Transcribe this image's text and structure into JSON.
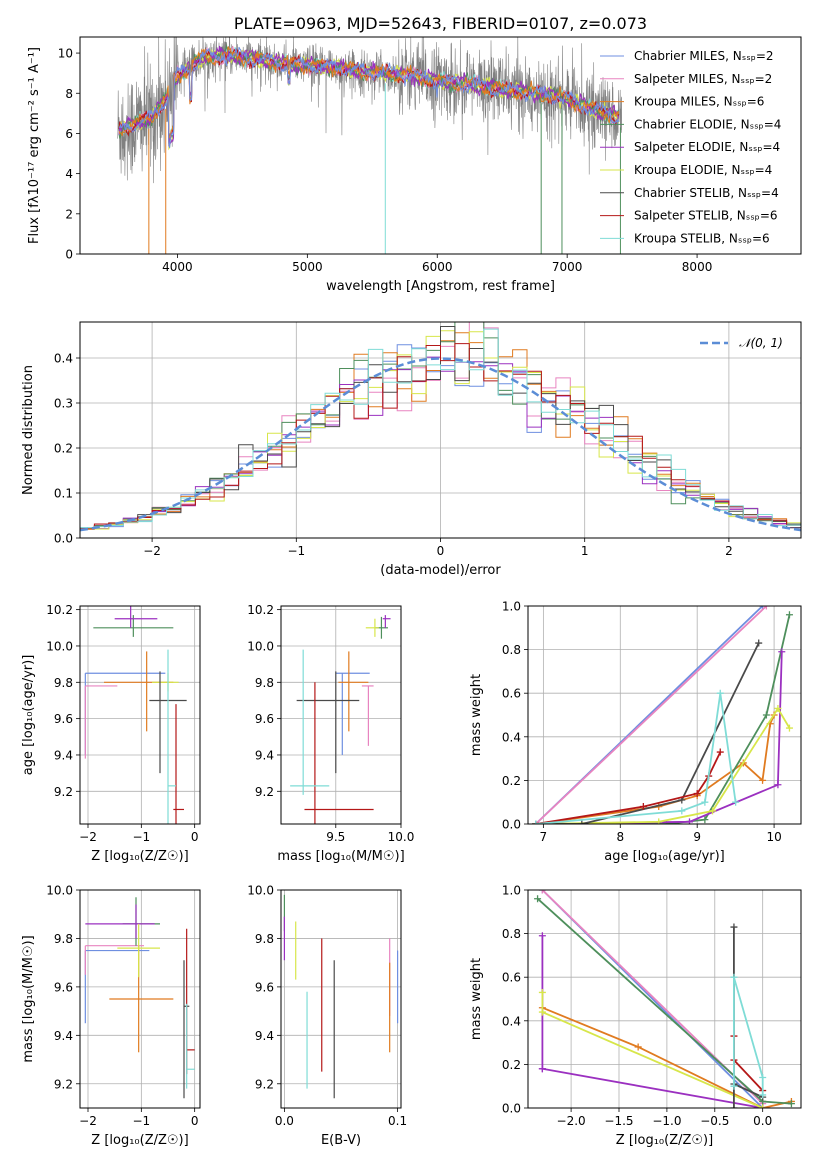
{
  "palette": [
    "#6f8fe0",
    "#e884c0",
    "#e07b20",
    "#4e8f5c",
    "#9b30c0",
    "#d7e64a",
    "#4a4a4a",
    "#b41818",
    "#7fdcd6"
  ],
  "chart_data": [
    {
      "id": "spectrum",
      "type": "line",
      "title": "PLATE=0963, MJD=52643, FIBERID=0107, z=0.073",
      "xlabel": "wavelength [Angstrom, rest frame]",
      "ylabel": "Flux [fλ10⁻¹⁷ erg cm⁻² s⁻¹ A⁻¹]",
      "xlim": [
        3250,
        8800
      ],
      "ylim": [
        0,
        10.8
      ],
      "xticks": [
        4000,
        5000,
        6000,
        7000,
        8000
      ],
      "yticks": [
        0,
        2,
        4,
        6,
        8,
        10
      ],
      "grid": false,
      "legend_position": "right",
      "series": [
        {
          "name": "Chabrier MILES, Nₛₛₚ=2"
        },
        {
          "name": "Salpeter MILES, Nₛₛₚ=2"
        },
        {
          "name": "Kroupa MILES, Nₛₛₚ=6"
        },
        {
          "name": "Chabrier ELODIE, Nₛₛₚ=4"
        },
        {
          "name": "Salpeter ELODIE, Nₛₛₚ=4"
        },
        {
          "name": "Kroupa ELODIE, Nₛₛₚ=4"
        },
        {
          "name": "Chabrier STELIB, Nₛₛₚ=4"
        },
        {
          "name": "Salpeter STELIB, Nₛₛₚ=6"
        },
        {
          "name": "Kroupa STELIB, Nₛₛₚ=6"
        }
      ],
      "continuum": {
        "x": [
          3550,
          3700,
          3800,
          3900,
          4000,
          4100,
          4200,
          4400,
          4600,
          4800,
          5000,
          5200,
          5400,
          5600,
          5800,
          6000,
          6200,
          6400,
          6600,
          6800,
          7000,
          7200,
          7400
        ],
        "y": [
          6.2,
          6.5,
          6.8,
          7.6,
          8.9,
          9.3,
          9.8,
          9.9,
          9.7,
          9.5,
          9.4,
          9.3,
          9.1,
          9.0,
          8.9,
          8.6,
          8.5,
          8.3,
          8.1,
          8.0,
          7.7,
          7.2,
          6.8
        ]
      }
    },
    {
      "id": "residuals",
      "type": "histogram",
      "xlabel": "(data-model)/error",
      "ylabel": "Normed distribution",
      "xlim": [
        -2.5,
        2.5
      ],
      "ylim": [
        0,
        0.48
      ],
      "xticks": [
        -2,
        -1,
        0,
        1,
        2
      ],
      "yticks": [
        0.0,
        0.1,
        0.2,
        0.3,
        0.4
      ],
      "grid": true,
      "legend": [
        "𝒩(0, 1)"
      ],
      "legend_position": "top-right",
      "bin_width": 0.1
    },
    {
      "id": "age-vs-Z",
      "type": "errorbar",
      "xlabel": "Z [log₁₀(Z/Z☉)]",
      "ylabel": "age  [log₁₀(age/yr)]",
      "xlim": [
        -2.15,
        0.1
      ],
      "ylim": [
        9.02,
        10.22
      ],
      "xticks": [
        -2,
        -1,
        0
      ],
      "yticks": [
        9.2,
        9.4,
        9.6,
        9.8,
        10.0,
        10.2
      ],
      "grid": true,
      "points": [
        {
          "x": -2.05,
          "xerr": [
            0,
            1.5
          ],
          "y": 9.85,
          "yerr": [
            0.45,
            0
          ]
        },
        {
          "x": -2.05,
          "xerr": [
            0,
            0.6
          ],
          "y": 9.78,
          "yerr": [
            0.4,
            0
          ]
        },
        {
          "x": -0.9,
          "xerr": [
            0.8,
            0.5
          ],
          "y": 9.8,
          "yerr": [
            0.27,
            0.17
          ]
        },
        {
          "x": -1.15,
          "xerr": [
            0.75,
            0.75
          ],
          "y": 10.1,
          "yerr": [
            0.05,
            0.07
          ]
        },
        {
          "x": -1.2,
          "xerr": [
            0.3,
            0.5
          ],
          "y": 10.15,
          "yerr": [
            0.05,
            0.07
          ]
        },
        {
          "x": -0.5,
          "xerr": [
            0.3,
            0.2
          ],
          "y": 9.8,
          "yerr": [
            0.05,
            0.05
          ]
        },
        {
          "x": -0.65,
          "xerr": [
            0.2,
            0.5
          ],
          "y": 9.7,
          "yerr": [
            0.4,
            0.16
          ]
        },
        {
          "x": -0.35,
          "xerr": [
            0.05,
            0.15
          ],
          "y": 9.1,
          "yerr": [
            0.2,
            0.58
          ]
        },
        {
          "x": -0.5,
          "xerr": [
            0,
            0.15
          ],
          "y": 9.23,
          "yerr": [
            0.22,
            0.75
          ]
        }
      ]
    },
    {
      "id": "age-vs-mass",
      "type": "errorbar",
      "xlabel": "mass [log₁₀(M/M☉)]",
      "xlim": [
        9.08,
        10.0
      ],
      "ylim": [
        9.02,
        10.22
      ],
      "xticks": [
        9.5,
        10.0
      ],
      "yticks": [
        9.2,
        9.4,
        9.6,
        9.8,
        10.0,
        10.2
      ],
      "grid": true,
      "points": [
        {
          "x": 9.55,
          "xerr": [
            0.05,
            0.21
          ],
          "y": 9.85,
          "yerr": [
            0.45,
            0
          ]
        },
        {
          "x": 9.75,
          "xerr": [
            0.05,
            0.04
          ],
          "y": 9.78,
          "yerr": [
            0.33,
            0
          ]
        },
        {
          "x": 9.6,
          "xerr": [
            0.08,
            0.15
          ],
          "y": 9.8,
          "yerr": [
            0.27,
            0.17
          ]
        },
        {
          "x": 9.85,
          "xerr": [
            0.05,
            0.05
          ],
          "y": 10.1,
          "yerr": [
            0.06,
            0.06
          ]
        },
        {
          "x": 9.88,
          "xerr": [
            0.02,
            0.04
          ],
          "y": 10.15,
          "yerr": [
            0.05,
            0.02
          ]
        },
        {
          "x": 9.8,
          "xerr": [
            0.07,
            0.03
          ],
          "y": 10.1,
          "yerr": [
            0.05,
            0.05
          ]
        },
        {
          "x": 9.5,
          "xerr": [
            0.3,
            0.18
          ],
          "y": 9.7,
          "yerr": [
            0.4,
            0.16
          ]
        },
        {
          "x": 9.34,
          "xerr": [
            0.08,
            0.45
          ],
          "y": 9.1,
          "yerr": [
            0.1,
            0.7
          ]
        },
        {
          "x": 9.25,
          "xerr": [
            0.1,
            0.2
          ],
          "y": 9.23,
          "yerr": [
            0.05,
            0.75
          ]
        }
      ]
    },
    {
      "id": "weight-vs-age",
      "type": "line",
      "xlabel": "age  [log₁₀(age/yr)]",
      "ylabel": "mass weight",
      "xlim": [
        6.8,
        10.35
      ],
      "ylim": [
        0,
        1.0
      ],
      "xticks": [
        7,
        8,
        9,
        10
      ],
      "yticks": [
        0.0,
        0.2,
        0.4,
        0.6,
        0.8,
        1.0
      ],
      "grid": true,
      "series": [
        {
          "x": [
            6.9,
            9.85
          ],
          "y": [
            0.0,
            1.0
          ]
        },
        {
          "x": [
            6.9,
            9.9
          ],
          "y": [
            0.0,
            1.0
          ]
        },
        {
          "x": [
            6.9,
            8.5,
            9.0,
            9.6,
            9.85,
            9.95,
            10.0
          ],
          "y": [
            0.0,
            0.08,
            0.13,
            0.28,
            0.2,
            0.46,
            0.5
          ]
        },
        {
          "x": [
            6.9,
            8.6,
            9.1,
            9.9,
            10.2
          ],
          "y": [
            0.0,
            0.0,
            0.02,
            0.5,
            0.96
          ]
        },
        {
          "x": [
            6.9,
            8.9,
            10.05,
            10.1
          ],
          "y": [
            0.0,
            0.01,
            0.18,
            0.79
          ]
        },
        {
          "x": [
            6.9,
            8.5,
            9.2,
            10.05,
            10.2
          ],
          "y": [
            0.0,
            0.01,
            0.06,
            0.53,
            0.44
          ]
        },
        {
          "x": [
            6.9,
            7.5,
            8.8,
            9.8
          ],
          "y": [
            0.0,
            0.0,
            0.11,
            0.83
          ]
        },
        {
          "x": [
            6.9,
            8.3,
            9.0,
            9.15,
            9.3
          ],
          "y": [
            0.0,
            0.08,
            0.14,
            0.22,
            0.33
          ]
        },
        {
          "x": [
            6.9,
            8.8,
            9.1,
            9.3,
            9.5
          ],
          "y": [
            0.0,
            0.06,
            0.1,
            0.6,
            0.1
          ]
        }
      ]
    },
    {
      "id": "mass-vs-Z",
      "type": "errorbar",
      "xlabel": "Z [log₁₀(Z/Z☉)]",
      "ylabel": "mass [log₁₀(M/M☉)]",
      "xlim": [
        -2.15,
        0.1
      ],
      "ylim": [
        9.1,
        10.0
      ],
      "xticks": [
        -2,
        -1,
        0
      ],
      "yticks": [
        9.2,
        9.4,
        9.6,
        9.8,
        10.0
      ],
      "grid": true,
      "points": [
        {
          "x": -2.05,
          "xerr": [
            0,
            1.2
          ],
          "y": 9.75,
          "yerr": [
            0.3,
            0
          ]
        },
        {
          "x": -2.05,
          "xerr": [
            0,
            1.1
          ],
          "y": 9.77,
          "yerr": [
            0.12,
            0
          ]
        },
        {
          "x": -1.05,
          "xerr": [
            0.55,
            0.65
          ],
          "y": 9.55,
          "yerr": [
            0.22,
            0.22
          ]
        },
        {
          "x": -1.1,
          "xerr": [
            0.25,
            0.45
          ],
          "y": 9.86,
          "yerr": [
            0.09,
            0.11
          ]
        },
        {
          "x": -1.1,
          "xerr": [
            0.95,
            0.35
          ],
          "y": 9.86,
          "yerr": [
            0.06,
            0.08
          ]
        },
        {
          "x": -1.05,
          "xerr": [
            0.4,
            0.4
          ],
          "y": 9.76,
          "yerr": [
            0.12,
            0.1
          ]
        },
        {
          "x": -0.2,
          "xerr": [
            0,
            0.1
          ],
          "y": 9.52,
          "yerr": [
            0.38,
            0.19
          ]
        },
        {
          "x": -0.15,
          "xerr": [
            0,
            0.15
          ],
          "y": 9.34,
          "yerr": [
            0.1,
            0.5
          ]
        },
        {
          "x": -0.15,
          "xerr": [
            0,
            0.15
          ],
          "y": 9.26,
          "yerr": [
            0.08,
            0.27
          ]
        }
      ]
    },
    {
      "id": "mass-vs-EBV",
      "type": "errorbar",
      "xlabel": "E(B-V)",
      "xlim": [
        -0.003,
        0.103
      ],
      "ylim": [
        9.1,
        10.0
      ],
      "xticks": [
        0.0,
        0.1
      ],
      "yticks": [
        9.2,
        9.4,
        9.6,
        9.8,
        10.0
      ],
      "grid": true,
      "points": [
        {
          "x": 0.1,
          "y": 9.6,
          "yerr": [
            0.15,
            0.15
          ]
        },
        {
          "x": 0.093,
          "y": 9.6,
          "yerr": [
            0.12,
            0.2
          ]
        },
        {
          "x": 0.093,
          "y": 9.5,
          "yerr": [
            0.17,
            0.2
          ]
        },
        {
          "x": 0.0,
          "y": 9.88,
          "yerr": [
            0.05,
            0.1
          ]
        },
        {
          "x": 0.0,
          "y": 9.83,
          "yerr": [
            0.12,
            0.06
          ]
        },
        {
          "x": 0.01,
          "y": 9.75,
          "yerr": [
            0.12,
            0.12
          ]
        },
        {
          "x": 0.044,
          "y": 9.42,
          "yerr": [
            0.28,
            0.29
          ]
        },
        {
          "x": 0.033,
          "y": 9.5,
          "yerr": [
            0.25,
            0.3
          ]
        },
        {
          "x": 0.02,
          "y": 9.38,
          "yerr": [
            0.2,
            0.2
          ]
        }
      ]
    },
    {
      "id": "weight-vs-Z",
      "type": "line",
      "xlabel": "Z [log₁₀(Z/Z☉)]",
      "ylabel": "mass weight",
      "xlim": [
        -2.45,
        0.4
      ],
      "ylim": [
        0,
        1.0
      ],
      "xticks": [
        -2.0,
        -1.5,
        -1.0,
        -0.5,
        0.0
      ],
      "xtick_labels": [
        "−2.0",
        "−1.5",
        "−1.0",
        "−0.5",
        "0.0"
      ],
      "yticks": [
        0.0,
        0.2,
        0.4,
        0.6,
        0.8,
        1.0
      ],
      "grid": true,
      "series": [
        {
          "x": [
            -2.3,
            0.0
          ],
          "y": [
            1.0,
            0.0
          ]
        },
        {
          "x": [
            -2.3,
            0.0
          ],
          "y": [
            1.0,
            0.02
          ]
        },
        {
          "x": [
            -2.3,
            -1.3,
            0.0,
            0.3
          ],
          "y": [
            0.46,
            0.28,
            0.0,
            0.03
          ]
        },
        {
          "x": [
            -2.35,
            0.0,
            0.3
          ],
          "y": [
            0.96,
            0.03,
            0.02
          ]
        },
        {
          "x": [
            -2.3,
            -2.3,
            -2.3,
            0.0
          ],
          "y": [
            0.79,
            0.18,
            0.18,
            0.0
          ]
        },
        {
          "x": [
            -2.3,
            -2.3,
            0.0
          ],
          "y": [
            0.53,
            0.44,
            0.0
          ]
        },
        {
          "x": [
            -0.3,
            -0.3,
            -0.3,
            0.0
          ],
          "y": [
            0.0,
            0.83,
            0.11,
            0.05
          ]
        },
        {
          "x": [
            -0.3,
            -0.3,
            0.0
          ],
          "y": [
            0.33,
            0.22,
            0.08
          ]
        },
        {
          "x": [
            -0.3,
            -0.3,
            0.0,
            0.0
          ],
          "y": [
            0.1,
            0.6,
            0.14,
            0.06
          ]
        }
      ]
    }
  ]
}
